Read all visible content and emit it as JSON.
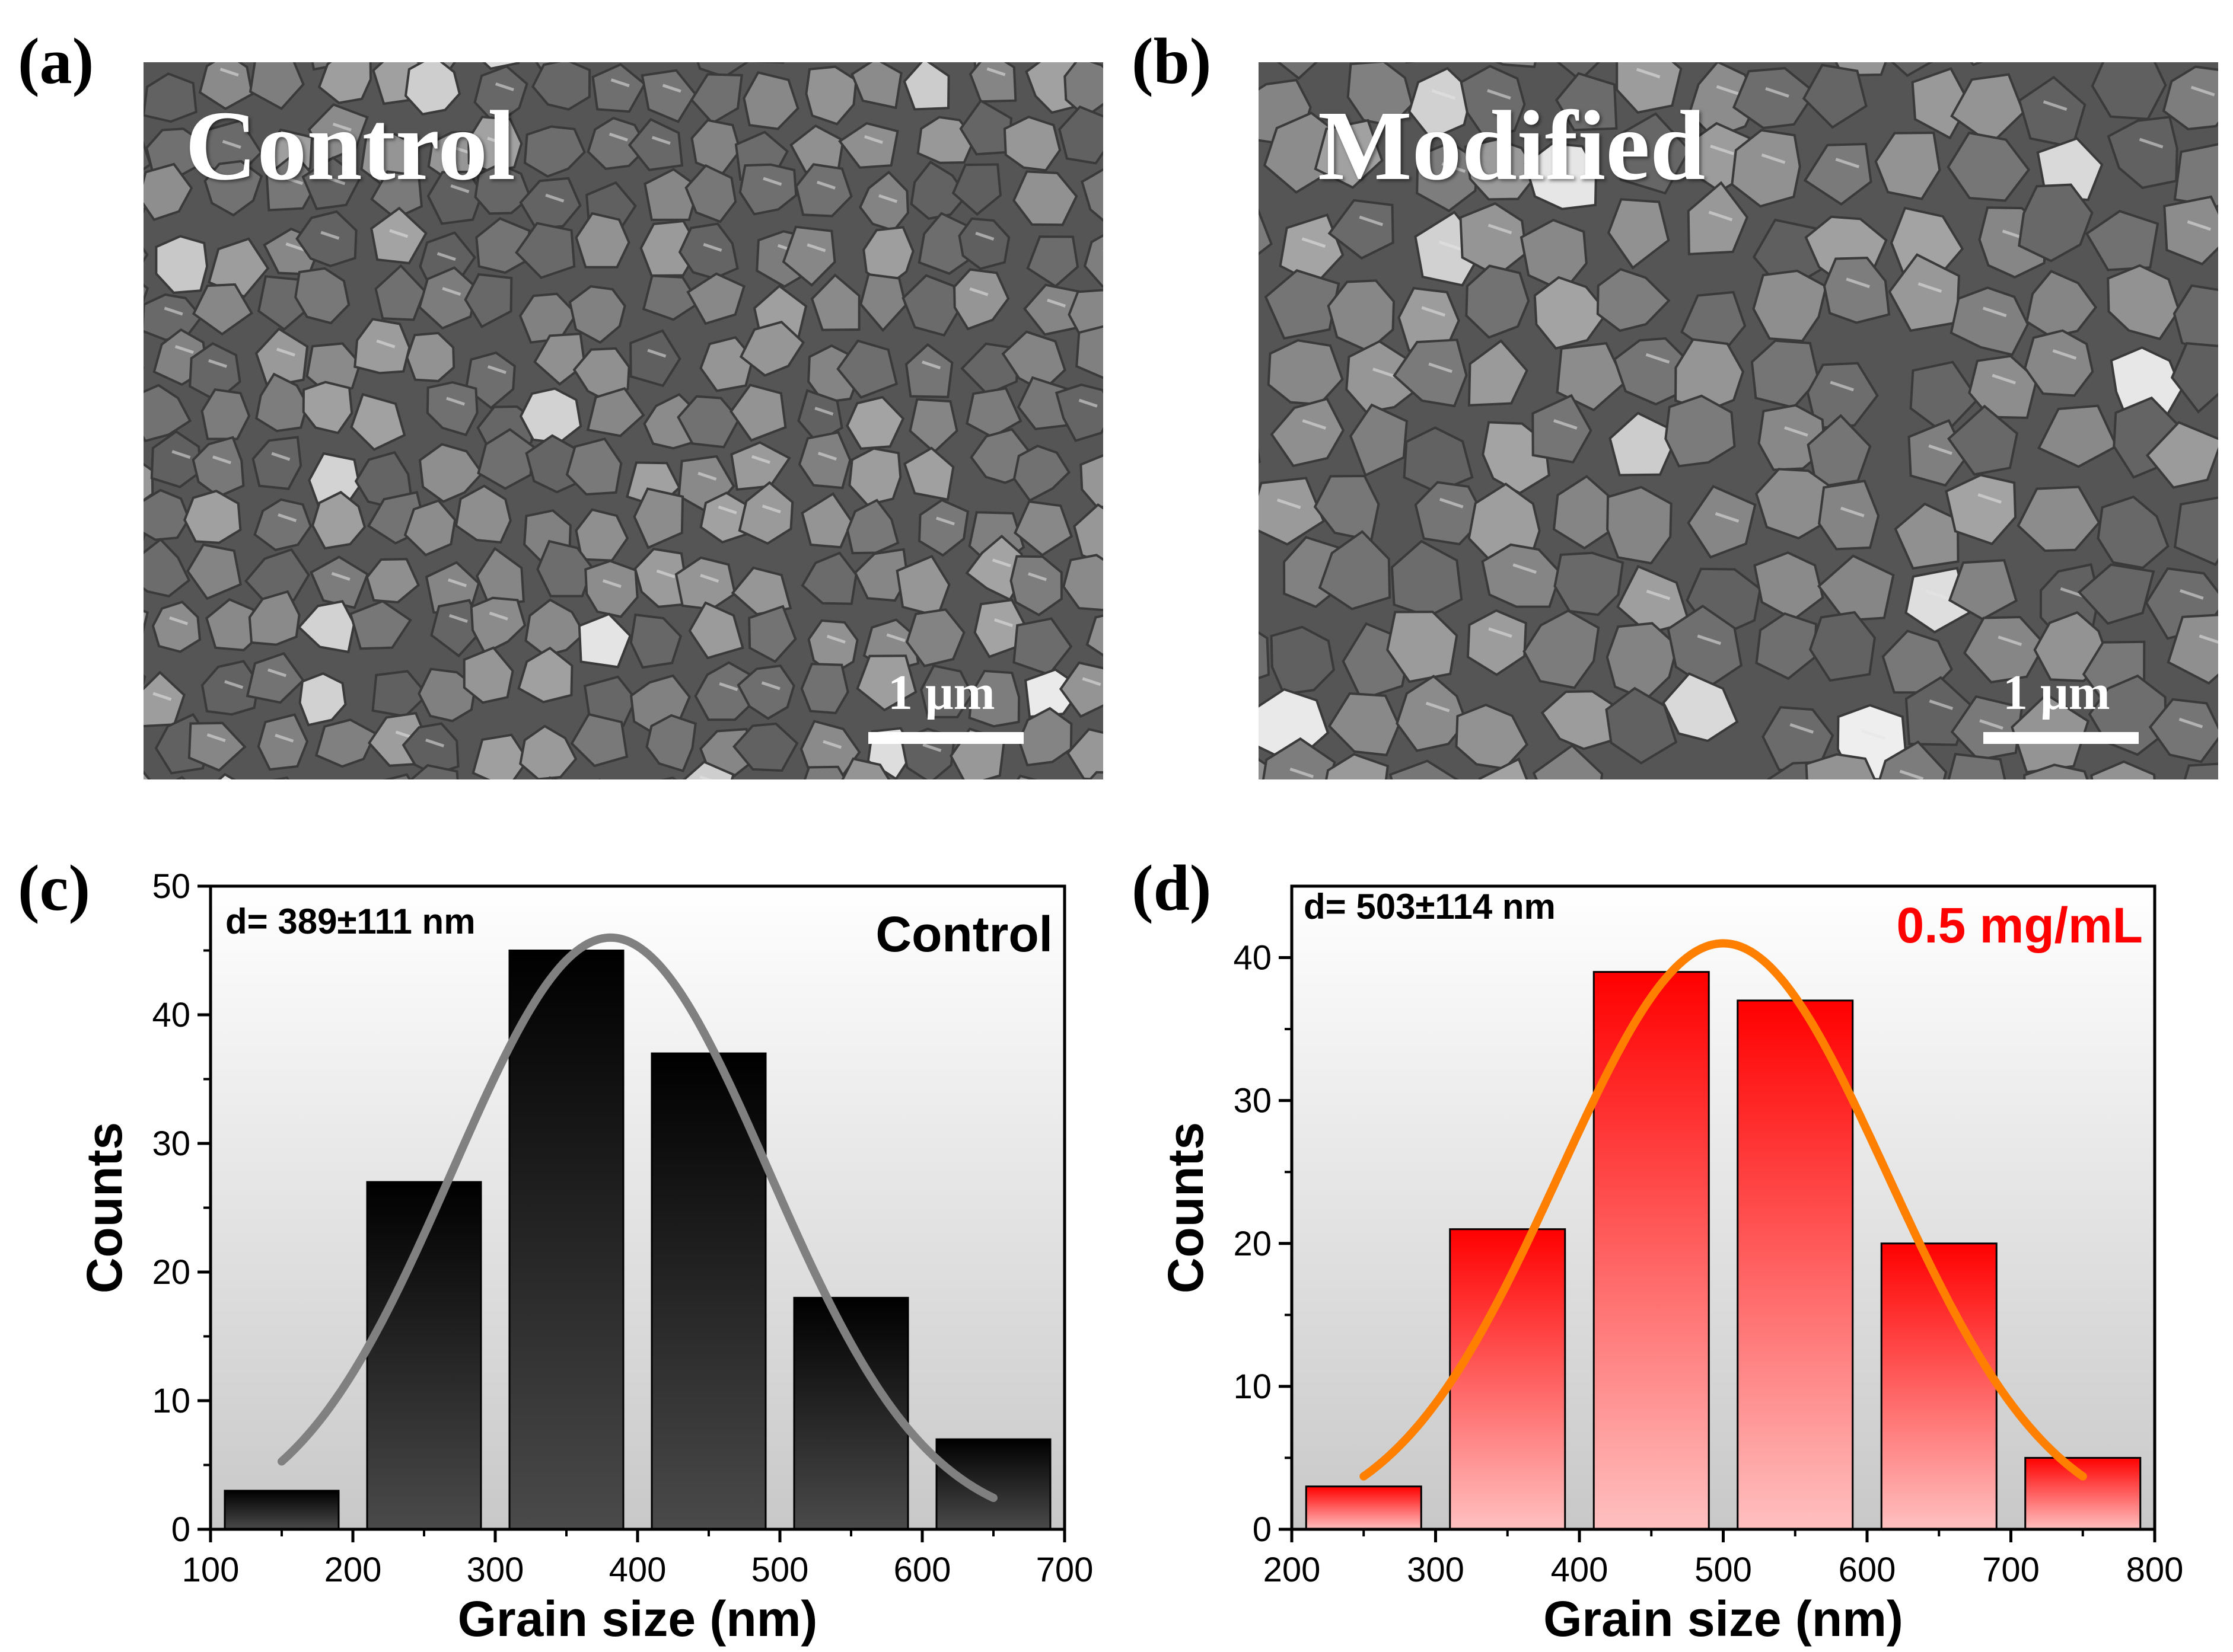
{
  "panels": {
    "a": {
      "label": "(a)",
      "title": "Control",
      "scale_label": "1 μm"
    },
    "b": {
      "label": "(b)",
      "title": "Modified",
      "scale_label": "1 μm"
    },
    "c": {
      "label": "(c)"
    },
    "d": {
      "label": "(d)"
    }
  },
  "colors": {
    "control_bar_top": "#000000",
    "control_bar_bottom": "#4a4a4a",
    "control_fit": "#808080",
    "modified_bar_top": "#ff0000",
    "modified_bar_bottom": "#ffc0c0",
    "modified_fit": "#ff8000",
    "modified_title": "#ff0000"
  },
  "chart_data": [
    {
      "type": "bar",
      "panel": "c",
      "title": "Control",
      "annotation": "d= 389±111 nm",
      "xlabel": "Grain size (nm)",
      "ylabel": "Counts",
      "xlim": [
        100,
        700
      ],
      "ylim": [
        0,
        50
      ],
      "xticks": [
        100,
        200,
        300,
        400,
        500,
        600,
        700
      ],
      "yticks": [
        0,
        10,
        20,
        30,
        40,
        50
      ],
      "bin_width": 80,
      "x": [
        150,
        250,
        350,
        450,
        550,
        650
      ],
      "values": [
        3,
        27,
        45,
        37,
        18,
        7
      ],
      "fit": {
        "type": "gaussian",
        "center": 381,
        "sigma": 111,
        "amplitude": 46,
        "range": [
          150,
          650
        ]
      }
    },
    {
      "type": "bar",
      "panel": "d",
      "title": "0.5 mg/mL",
      "annotation": "d= 503±114 nm",
      "xlabel": "Grain size (nm)",
      "ylabel": "Counts",
      "xlim": [
        200,
        800
      ],
      "ylim": [
        0,
        45
      ],
      "xticks": [
        200,
        300,
        400,
        500,
        600,
        700,
        800
      ],
      "yticks": [
        0,
        10,
        20,
        30,
        40
      ],
      "bin_width": 80,
      "x": [
        250,
        350,
        450,
        550,
        650,
        750
      ],
      "values": [
        3,
        21,
        39,
        37,
        20,
        5
      ],
      "fit": {
        "type": "gaussian",
        "center": 500,
        "sigma": 114,
        "amplitude": 41,
        "range": [
          250,
          750
        ]
      }
    }
  ]
}
